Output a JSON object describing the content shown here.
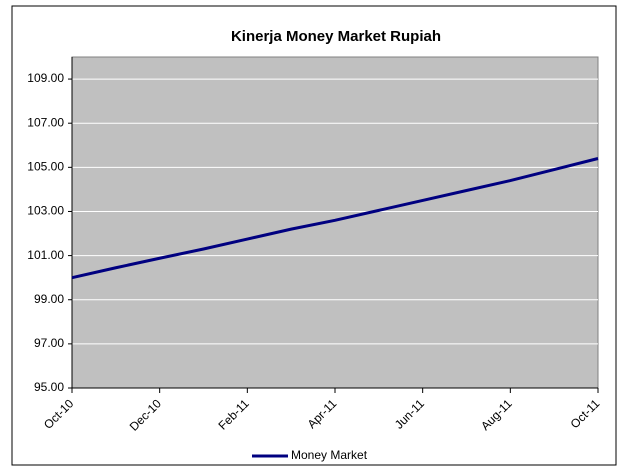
{
  "chart_data": {
    "type": "line",
    "title": "Kinerja Money Market Rupiah",
    "categories": [
      "Oct-10",
      null,
      "Dec-10",
      null,
      "Feb-11",
      null,
      "Apr-11",
      null,
      "Jun-11",
      null,
      "Aug-11",
      null,
      "Oct-11"
    ],
    "series": [
      {
        "name": "Money Market",
        "color": "#000080",
        "values": [
          100.0,
          100.45,
          100.88,
          101.3,
          101.75,
          102.2,
          102.6,
          103.05,
          103.5,
          103.95,
          104.4,
          104.9,
          105.4
        ]
      }
    ],
    "ylim": [
      95,
      110
    ],
    "yticks": [
      {
        "value": 95,
        "label": "95.00"
      },
      {
        "value": 97,
        "label": "97.00"
      },
      {
        "value": 99,
        "label": "99.00"
      },
      {
        "value": 101,
        "label": "101.00"
      },
      {
        "value": 103,
        "label": "103.00"
      },
      {
        "value": 105,
        "label": "105.00"
      },
      {
        "value": 107,
        "label": "107.00"
      },
      {
        "value": 109,
        "label": "109.00"
      }
    ],
    "grid": true,
    "legend": "bottom",
    "plot_color": "#c0c0c0"
  }
}
